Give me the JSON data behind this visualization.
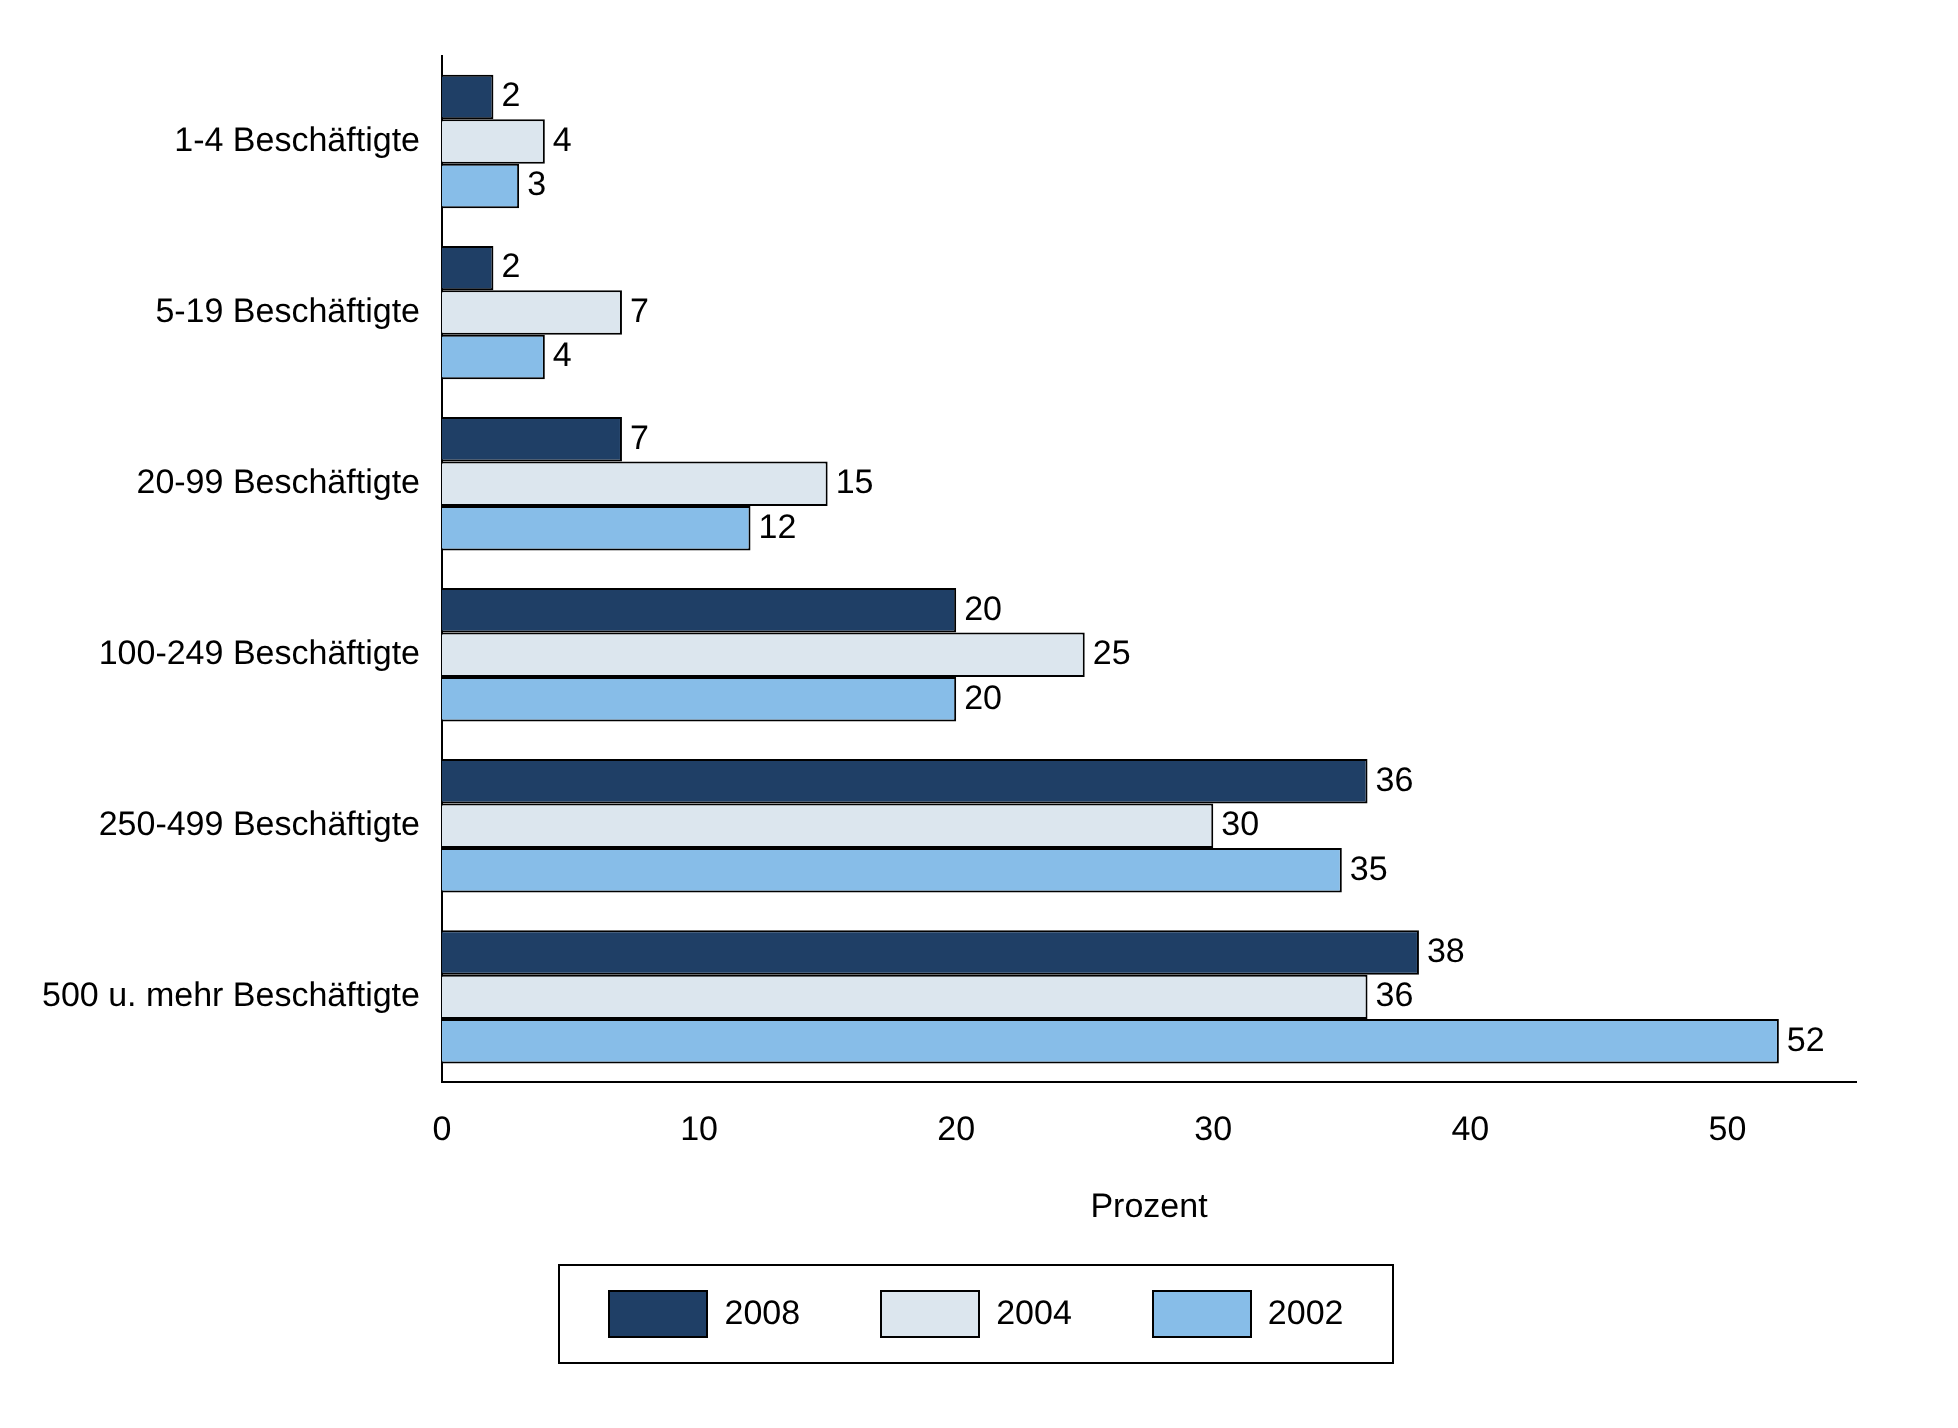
{
  "chart_data": {
    "type": "bar",
    "orientation": "horizontal",
    "xlabel": "Prozent",
    "categories": [
      "1-4 Beschäftigte",
      "5-19 Beschäftigte",
      "20-99 Beschäftigte",
      "100-249 Beschäftigte",
      "250-499 Beschäftigte",
      "500 u. mehr Beschäftigte"
    ],
    "series": [
      {
        "name": "2008",
        "color": "#1f3f66",
        "values": [
          2,
          2,
          7,
          20,
          36,
          38
        ]
      },
      {
        "name": "2004",
        "color": "#dce6ee",
        "values": [
          4,
          7,
          15,
          25,
          30,
          36
        ]
      },
      {
        "name": "2002",
        "color": "#87bde8",
        "values": [
          3,
          4,
          12,
          20,
          35,
          52
        ]
      }
    ],
    "xlim": [
      0,
      55
    ],
    "xticks": [
      0,
      10,
      20,
      30,
      40,
      50
    ],
    "data_labels": true,
    "legend": "bottom"
  }
}
